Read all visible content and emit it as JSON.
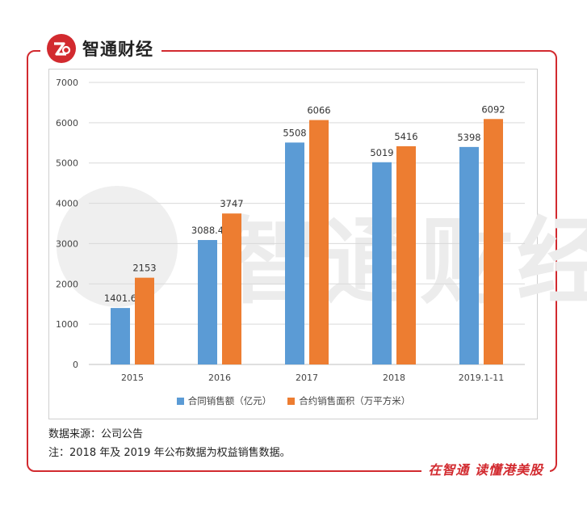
{
  "brand": {
    "name": "智通财经",
    "slogan": "在智通 读懂港美股"
  },
  "colors": {
    "brand_red": "#d22a2f",
    "series1": "#5b9bd5",
    "series2": "#ed7d31"
  },
  "chart_data": {
    "type": "bar",
    "title": "",
    "categories": [
      "2015",
      "2016",
      "2017",
      "2018",
      "2019.1-11"
    ],
    "series": [
      {
        "name": "合同销售额（亿元）",
        "values": [
          1401.6,
          3088.4,
          5508,
          5019,
          5398
        ],
        "labels": [
          "1401.6",
          "3088.4",
          "5508",
          "5019",
          "5398"
        ]
      },
      {
        "name": "合约销售面积（万平方米）",
        "values": [
          2153,
          3747,
          6066,
          5416,
          6092
        ],
        "labels": [
          "2153",
          "3747",
          "6066",
          "5416",
          "6092"
        ]
      }
    ],
    "yticks": [
      "0",
      "1000",
      "2000",
      "3000",
      "4000",
      "5000",
      "6000",
      "7000"
    ],
    "ylim": [
      0,
      7000
    ],
    "grid": true,
    "legend_position": "bottom"
  },
  "footer": {
    "source": "数据来源：公司公告",
    "note": "注：2018 年及 2019 年公布数据为权益销售数据。"
  }
}
